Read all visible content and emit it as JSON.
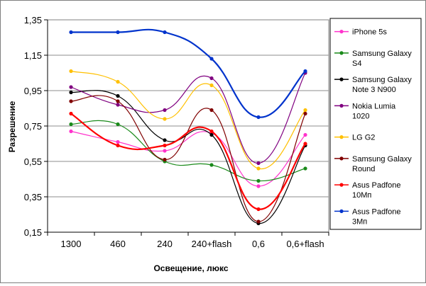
{
  "chart_data": {
    "type": "line",
    "title": "",
    "xlabel": "Освещение, люкс",
    "ylabel": "Разрешение",
    "categories": [
      "1300",
      "460",
      "240",
      "240+flash",
      "0,6",
      "0,6+flash"
    ],
    "ylim": [
      0.15,
      1.35
    ],
    "yticks": [
      0.15,
      0.35,
      0.55,
      0.75,
      0.95,
      1.15,
      1.35
    ],
    "ytick_labels": [
      "0,15",
      "0,35",
      "0,55",
      "0,75",
      "0,95",
      "1,15",
      "1,35"
    ],
    "grid": true,
    "legend_position": "right",
    "series": [
      {
        "name": "iPhone 5s",
        "color": "#ff33cc",
        "values": [
          0.72,
          0.66,
          0.61,
          0.71,
          0.41,
          0.7
        ]
      },
      {
        "name": "Samsung Galaxy S4",
        "color": "#1a8a1a",
        "values": [
          0.76,
          0.76,
          0.55,
          0.53,
          0.44,
          0.51
        ]
      },
      {
        "name": "Samsung Galaxy Note 3 N900",
        "color": "#000000",
        "values": [
          0.94,
          0.92,
          0.67,
          0.7,
          0.2,
          0.64
        ]
      },
      {
        "name": "Nokia Lumia 1020",
        "color": "#800080",
        "values": [
          0.97,
          0.87,
          0.84,
          1.02,
          0.54,
          1.05
        ]
      },
      {
        "name": "LG G2",
        "color": "#ffc000",
        "values": [
          1.06,
          1.0,
          0.79,
          0.98,
          0.51,
          0.84
        ]
      },
      {
        "name": "Samsung Galaxy Round",
        "color": "#800000",
        "values": [
          0.89,
          0.89,
          0.56,
          0.84,
          0.21,
          0.82
        ]
      },
      {
        "name": "Asus Padfone 10Мп",
        "color": "#ff0000",
        "values": [
          0.82,
          0.64,
          0.64,
          0.72,
          0.28,
          0.65
        ]
      },
      {
        "name": "Asus Padfone 3Мп",
        "color": "#0033cc",
        "values": [
          1.28,
          1.28,
          1.28,
          1.13,
          0.8,
          1.06
        ]
      }
    ]
  }
}
